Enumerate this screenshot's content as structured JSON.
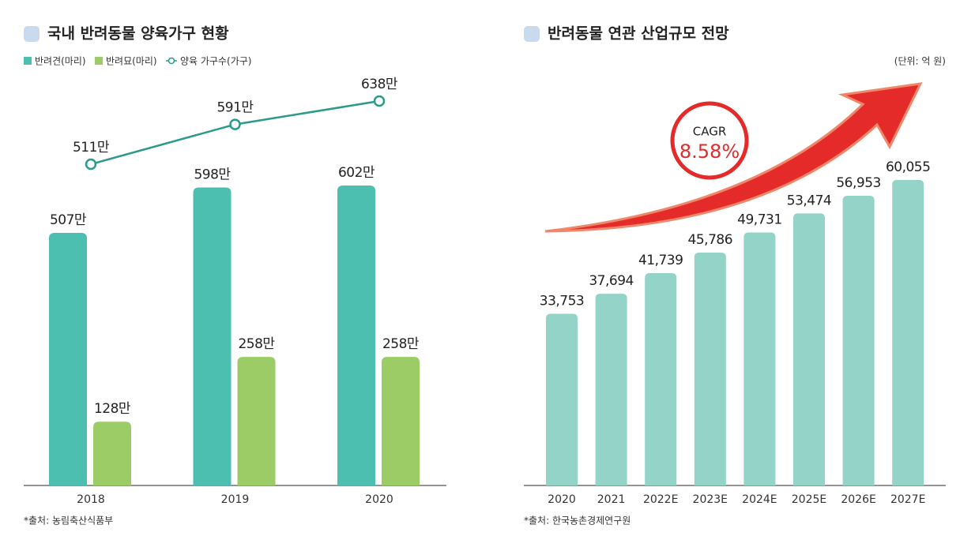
{
  "chart_data": [
    {
      "type": "bar",
      "title": "국내 반려동물 양육가구 현황",
      "categories": [
        "2018",
        "2019",
        "2020"
      ],
      "series": [
        {
          "name": "반려견(마리)",
          "color": "#4cbfb0",
          "values": [
            507,
            598,
            602
          ],
          "value_labels": [
            "507만",
            "598만",
            "602만"
          ]
        },
        {
          "name": "반려묘(마리)",
          "color": "#9ccc65",
          "values": [
            128,
            258,
            258
          ],
          "value_labels": [
            "128만",
            "258만",
            "258만"
          ]
        },
        {
          "name": "양육 가구수(가구)",
          "type": "line",
          "color": "#2a9a8a",
          "values": [
            511,
            591,
            638
          ],
          "value_labels": [
            "511만",
            "591만",
            "638만"
          ]
        }
      ],
      "source": "*출처: 농림축산식품부"
    },
    {
      "type": "bar",
      "title": "반려동물 연관 산업규모 전망",
      "unit": "(단위: 억 원)",
      "categories": [
        "2020",
        "2021",
        "2022E",
        "2023E",
        "2024E",
        "2025E",
        "2026E",
        "2027E"
      ],
      "values": [
        33753,
        37694,
        41739,
        45786,
        49731,
        53474,
        56953,
        60055
      ],
      "value_labels": [
        "33,753",
        "37,694",
        "41,739",
        "45,786",
        "49,731",
        "53,474",
        "56,953",
        "60,055"
      ],
      "color": "#93d3c8",
      "annotation": {
        "label": "CAGR",
        "value": "8.58%"
      },
      "source": "*출처: 한국농촌경제연구원"
    }
  ]
}
